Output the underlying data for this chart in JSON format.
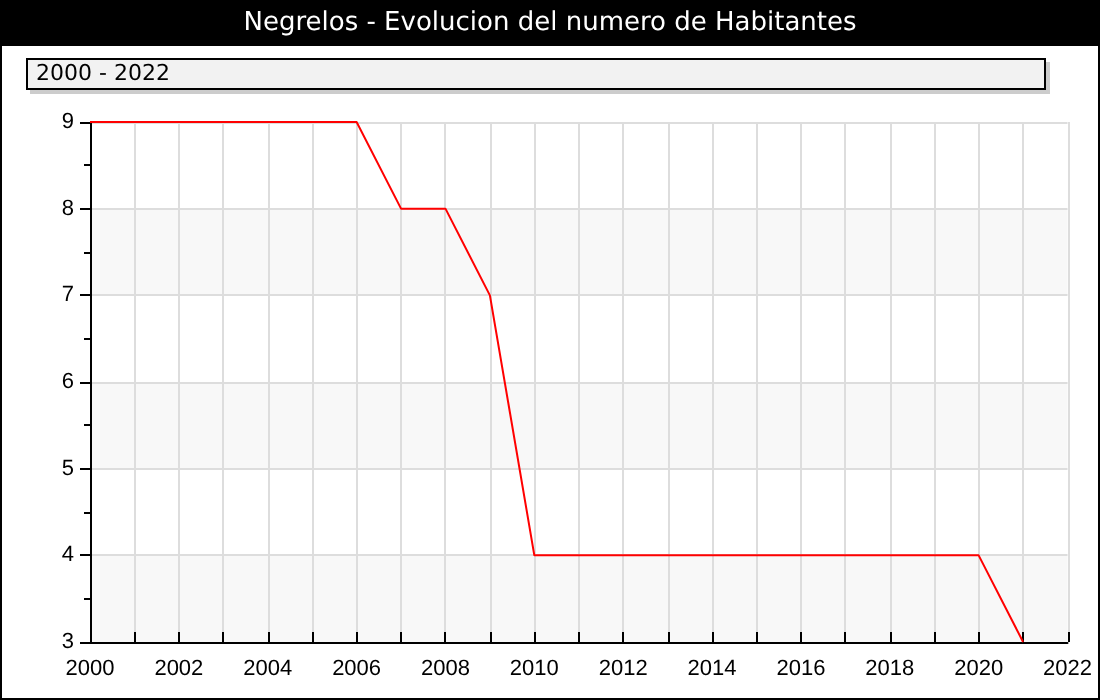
{
  "chart_data": {
    "type": "line",
    "title": "Negrelos - Evolucion del numero de Habitantes",
    "annotations": [
      "2000 - 2022"
    ],
    "x": [
      2000,
      2001,
      2002,
      2003,
      2004,
      2005,
      2006,
      2007,
      2008,
      2009,
      2010,
      2011,
      2012,
      2013,
      2014,
      2015,
      2016,
      2017,
      2018,
      2019,
      2020,
      2021
    ],
    "series": [
      {
        "color": "#ff0000",
        "values": [
          9,
          9,
          9,
          9,
          9,
          9,
          9,
          8,
          8,
          7,
          4,
          4,
          4,
          4,
          4,
          4,
          4,
          4,
          4,
          4,
          4,
          3
        ]
      }
    ],
    "xlim": [
      2000,
      2022
    ],
    "xticks": [
      2000,
      2002,
      2004,
      2006,
      2008,
      2010,
      2012,
      2014,
      2016,
      2018,
      2020,
      2022
    ],
    "ylim": [
      3,
      9
    ],
    "yticks": [
      3,
      4,
      5,
      6,
      7,
      8,
      9
    ],
    "grid": true,
    "marker": "none",
    "line_style": "solid"
  }
}
